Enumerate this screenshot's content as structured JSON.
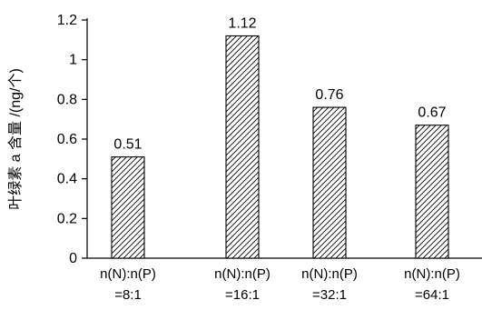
{
  "chart_data": {
    "type": "bar",
    "title": "",
    "xlabel": "",
    "ylabel": "叶绿素 a 含量 /(ng/个)",
    "categories": [
      {
        "line1": "n(N):n(P)",
        "line2": "=8:1"
      },
      {
        "line1": "n(N):n(P)",
        "line2": "=16:1"
      },
      {
        "line1": "n(N):n(P)",
        "line2": "=32:1"
      },
      {
        "line1": "n(N):n(P)",
        "line2": "=64:1"
      }
    ],
    "values": [
      0.51,
      1.12,
      0.76,
      0.67
    ],
    "data_labels": [
      "0.51",
      "1.12",
      "0.76",
      "0.67"
    ],
    "ylim": [
      0,
      1.2
    ],
    "yticks": [
      0,
      0.2,
      0.4,
      0.6,
      0.8,
      1,
      1.2
    ],
    "ytick_labels": [
      "0",
      "0.2",
      "0.4",
      "0.6",
      "0.8",
      "1",
      "1.2"
    ],
    "grid": false,
    "legend": "none",
    "bar_fill": "diagonal-hatch",
    "colors": {
      "stroke": "#000000",
      "background": "#ffffff"
    }
  }
}
